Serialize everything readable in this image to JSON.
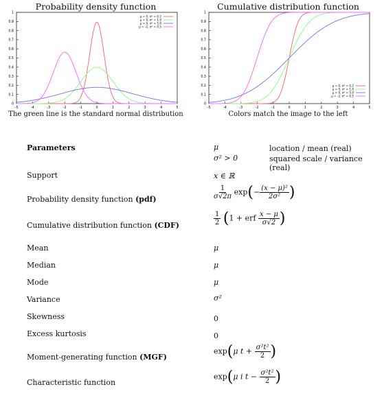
{
  "chart_data": [
    {
      "type": "line",
      "title": "Probability density function",
      "caption": "The green line is the standard normal distribution",
      "xlim": [
        -5,
        5
      ],
      "ylim": [
        0,
        1
      ],
      "xticks": [
        "-5",
        "-4",
        "-3",
        "-2",
        "-1",
        "0",
        "1",
        "2",
        "3",
        "4",
        "5"
      ],
      "yticks": [
        "0",
        "0.1",
        "0.2",
        "0.3",
        "0.4",
        "0.5",
        "0.6",
        "0.7",
        "0.8",
        "0.9",
        "1"
      ],
      "legend": "top-right",
      "series": [
        {
          "name": "μ = 0, σ² = 0.2",
          "mu": 0,
          "var": 0.2,
          "color": "#ff6060"
        },
        {
          "name": "μ = 0, σ² = 1.0",
          "mu": 0,
          "var": 1.0,
          "color": "#80ff80"
        },
        {
          "name": "μ = 0, σ² = 5.0",
          "mu": 0,
          "var": 5.0,
          "color": "#7070ff"
        },
        {
          "name": "μ = -2, σ² = 0.5",
          "mu": -2,
          "var": 0.5,
          "color": "#ff60ff"
        }
      ]
    },
    {
      "type": "line",
      "title": "Cumulative distribution function",
      "caption": "Colors match the image to the left",
      "xlim": [
        -5,
        5
      ],
      "ylim": [
        0,
        1
      ],
      "xticks": [
        "-5",
        "-4",
        "-3",
        "-2",
        "-1",
        "0",
        "1",
        "2",
        "3",
        "4",
        "5"
      ],
      "yticks": [
        "0",
        "0.1",
        "0.2",
        "0.3",
        "0.4",
        "0.5",
        "0.6",
        "0.7",
        "0.8",
        "0.9",
        "1"
      ],
      "legend": "bottom-right",
      "series": [
        {
          "name": "μ = 0, σ² = 0.2",
          "mu": 0,
          "var": 0.2,
          "color": "#ff6060"
        },
        {
          "name": "μ = 0, σ² = 1.0",
          "mu": 0,
          "var": 1.0,
          "color": "#80ff80"
        },
        {
          "name": "μ = 0, σ² = 5.0",
          "mu": 0,
          "var": 5.0,
          "color": "#7070ff"
        },
        {
          "name": "μ = -2, σ² = 0.5",
          "mu": -2,
          "var": 0.5,
          "color": "#ff60ff"
        }
      ]
    }
  ],
  "table": {
    "parameters": {
      "label": "Parameters",
      "v1": "μ",
      "d1": "location / mean (real)",
      "v2": "σ² > 0",
      "d2": "squared scale / variance (real)"
    },
    "support": {
      "label": "Support",
      "value": "x ∈ ℝ"
    },
    "pdf": {
      "label": "Probability density function ",
      "label_b": "(pdf)"
    },
    "cdf": {
      "label": "Cumulative distribution function ",
      "label_b": "(CDF)"
    },
    "mean": {
      "label": "Mean",
      "value": "μ"
    },
    "median": {
      "label": "Median",
      "value": "μ"
    },
    "mode": {
      "label": "Mode",
      "value": "μ"
    },
    "variance": {
      "label": "Variance",
      "value": "σ²"
    },
    "skewness": {
      "label": "Skewness",
      "value": "0"
    },
    "kurtosis": {
      "label": "Excess kurtosis",
      "value": "0"
    },
    "mgf": {
      "label": "Moment-generating function ",
      "label_b": "(MGF)"
    },
    "cf": {
      "label": "Characteristic function"
    }
  }
}
